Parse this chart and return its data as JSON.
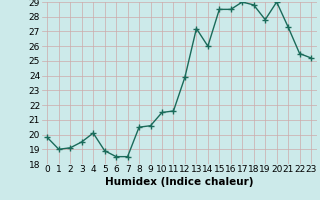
{
  "xlabel": "Humidex (Indice chaleur)",
  "x": [
    0,
    1,
    2,
    3,
    4,
    5,
    6,
    7,
    8,
    9,
    10,
    11,
    12,
    13,
    14,
    15,
    16,
    17,
    18,
    19,
    20,
    21,
    22,
    23
  ],
  "y": [
    19.8,
    19.0,
    19.1,
    19.5,
    20.1,
    18.9,
    18.5,
    18.5,
    20.5,
    20.6,
    21.5,
    21.6,
    23.9,
    27.2,
    26.0,
    28.5,
    28.5,
    29.0,
    28.8,
    27.8,
    29.0,
    27.3,
    25.5,
    25.2
  ],
  "line_color": "#1a6b5a",
  "marker": "+",
  "marker_size": 4,
  "marker_linewidth": 1.0,
  "bg_color": "#cceaea",
  "grid_color": "#b0cccc",
  "ylim": [
    18,
    29
  ],
  "yticks": [
    18,
    19,
    20,
    21,
    22,
    23,
    24,
    25,
    26,
    27,
    28,
    29
  ],
  "xtick_labels": [
    "0",
    "1",
    "2",
    "3",
    "4",
    "5",
    "6",
    "7",
    "8",
    "9",
    "10",
    "11",
    "12",
    "13",
    "14",
    "15",
    "16",
    "17",
    "18",
    "19",
    "20",
    "21",
    "22",
    "23"
  ],
  "tick_fontsize": 6.5,
  "xlabel_fontsize": 7.5,
  "linewidth": 1.0
}
